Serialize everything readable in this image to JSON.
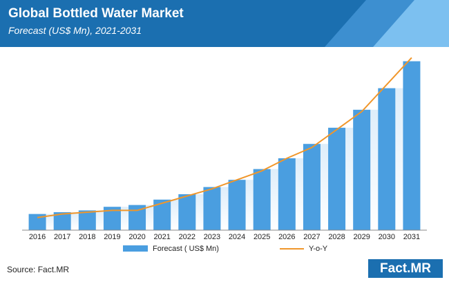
{
  "header": {
    "title": "Global Bottled Water Market",
    "subtitle": "Forecast (US$ Mn), 2021-2031"
  },
  "footer": {
    "source": "Source: Fact.MR",
    "logo_text": "Fact.MR"
  },
  "colors": {
    "header_blue": "#1b6fb0",
    "bar_blue": "#4a9ee0",
    "line_orange": "#f0962a"
  },
  "chart_data": {
    "type": "bar",
    "categories": [
      "2016",
      "2017",
      "2018",
      "2019",
      "2020",
      "2021",
      "2022",
      "2023",
      "2024",
      "2025",
      "2026",
      "2027",
      "2028",
      "2029",
      "2030",
      "2031"
    ],
    "series": [
      {
        "name": "Forecast ( US$ Mn)",
        "type": "bar",
        "values": [
          9,
          10,
          11,
          13,
          14,
          17,
          20,
          24,
          28,
          34,
          40,
          48,
          57,
          67,
          79,
          94
        ]
      },
      {
        "name": "Y-o-Y",
        "type": "line",
        "values": [
          7,
          9,
          10,
          11,
          11,
          15,
          19,
          23,
          28,
          33,
          40,
          46,
          56,
          66,
          81,
          96
        ]
      }
    ],
    "ylim": [
      0,
      100
    ],
    "title": "",
    "xlabel": "",
    "ylabel": "",
    "grid": false,
    "legend_position": "bottom"
  }
}
